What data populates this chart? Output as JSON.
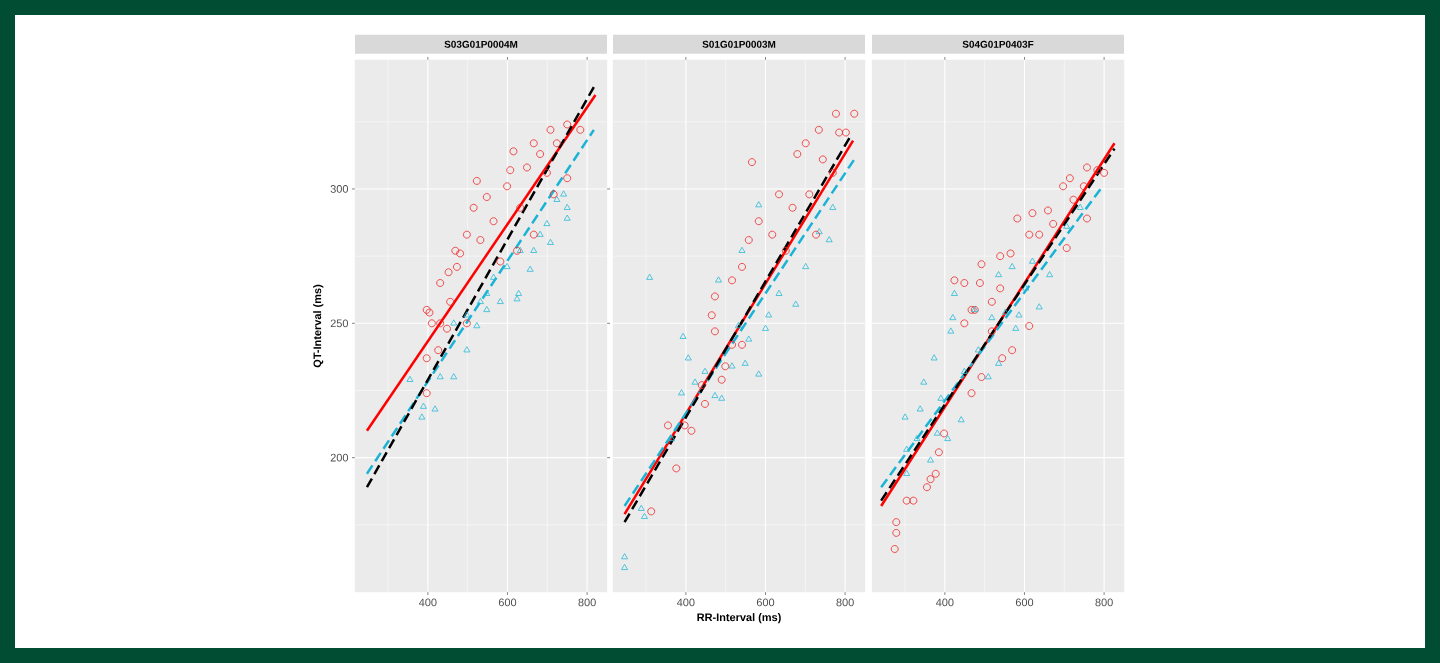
{
  "chart_data": [
    {
      "type": "scatter",
      "title": "S03G01P0004M",
      "ylabel": "QT-Interval (ms)",
      "grid": true,
      "xlim": [
        217,
        850
      ],
      "ylim": [
        150,
        348
      ],
      "xticks": [
        {
          "value": 300,
          "label": null
        },
        400,
        {
          "value": 500,
          "label": null
        },
        600,
        {
          "value": 700,
          "label": null
        },
        800
      ],
      "yticks": [
        {
          "value": 175,
          "label": null
        },
        200,
        {
          "value": 225,
          "label": null
        },
        250,
        {
          "value": 275,
          "label": null
        },
        300,
        {
          "value": 325,
          "label": null
        }
      ],
      "series": [
        {
          "type": "scatter",
          "marker": "triangle",
          "color": "#2bbad8",
          "x": [
            355,
            385,
            418,
            389,
            431,
            465,
            498,
            523,
            548,
            582,
            624,
            628,
            657,
            666,
            708,
            750,
            750,
            724,
            741,
            699,
            682,
            599,
            565,
            532,
            498,
            465,
            548,
            632
          ],
          "values": [
            229,
            215,
            218,
            219,
            230,
            230,
            240,
            249,
            255,
            258,
            259,
            261,
            270,
            277,
            280,
            289,
            293,
            296,
            298,
            287,
            283,
            271,
            267,
            258,
            253,
            250,
            261,
            277
          ]
        },
        {
          "type": "scatter",
          "marker": "circle",
          "color": "#f02424",
          "x": [
            404,
            410,
            397,
            397,
            426,
            431,
            452,
            469,
            498,
            523,
            515,
            548,
            607,
            615,
            666,
            708,
            750,
            783,
            750,
            716,
            666,
            624,
            582,
            397,
            473,
            599,
            649,
            682,
            565,
            532,
            481,
            456,
            431,
            448,
            498,
            632,
            699,
            724
          ],
          "values": [
            254,
            250,
            237,
            224,
            240,
            265,
            269,
            277,
            283,
            303,
            293,
            297,
            307,
            314,
            317,
            322,
            324,
            322,
            304,
            298,
            283,
            277,
            273,
            255,
            271,
            301,
            308,
            313,
            288,
            281,
            276,
            258,
            250,
            248,
            250,
            293,
            306,
            317
          ]
        },
        {
          "type": "line",
          "line_style": "solid",
          "color": "#ff0000",
          "x": [
            247,
            821
          ],
          "values": [
            210,
            335
          ]
        },
        {
          "type": "line",
          "line_style": "dashed",
          "color": "#1ab3d6",
          "x": [
            247,
            817
          ],
          "values": [
            194,
            322
          ]
        },
        {
          "type": "line",
          "line_style": "dashed",
          "color": "#000000",
          "x": [
            247,
            821
          ],
          "values": [
            189,
            339
          ]
        }
      ]
    },
    {
      "type": "scatter",
      "title": "S01G01P0003M",
      "xlabel": "RR-Interval (ms)",
      "grid": true,
      "tick_labels": "x",
      "xlim": [
        217,
        850
      ],
      "ylim": [
        150,
        348
      ],
      "xticks": [
        {
          "value": 300,
          "label": null
        },
        400,
        {
          "value": 500,
          "label": null
        },
        600,
        {
          "value": 700,
          "label": null
        },
        800
      ],
      "yticks": [
        {
          "value": 175,
          "label": null
        },
        200,
        {
          "value": 225,
          "label": null
        },
        250,
        {
          "value": 275,
          "label": null
        },
        300,
        {
          "value": 325,
          "label": null
        }
      ],
      "series": [
        {
          "type": "scatter",
          "marker": "triangle",
          "color": "#2bbad8",
          "x": [
            309,
            583,
            482,
            769,
            760,
            735,
            701,
            676,
            634,
            600,
            541,
            583,
            549,
            393,
            406,
            389,
            423,
            448,
            473,
            516,
            532,
            608,
            364,
            288,
            296,
            246,
            246,
            558,
            490
          ],
          "values": [
            267,
            294,
            266,
            293,
            281,
            284,
            271,
            257,
            261,
            248,
            277,
            231,
            235,
            245,
            237,
            224,
            228,
            232,
            223,
            234,
            249,
            253,
            207,
            181,
            178,
            163,
            159,
            244,
            222
          ]
        },
        {
          "type": "scatter",
          "marker": "circle",
          "color": "#f02424",
          "x": [
            566,
            634,
            701,
            777,
            823,
            734,
            785,
            680,
            558,
            583,
            473,
            516,
            465,
            541,
            802,
            769,
            727,
            651,
            668,
            617,
            744,
            710,
            473,
            440,
            397,
            414,
            355,
            376,
            313,
            448,
            490,
            516,
            541,
            499
          ],
          "values": [
            310,
            298,
            317,
            328,
            328,
            322,
            321,
            313,
            281,
            288,
            260,
            266,
            253,
            271,
            321,
            306,
            283,
            277,
            293,
            283,
            311,
            298,
            247,
            227,
            212,
            210,
            212,
            196,
            180,
            220,
            229,
            242,
            242,
            234
          ]
        },
        {
          "type": "line",
          "line_style": "solid",
          "color": "#ff0000",
          "x": [
            246,
            820
          ],
          "values": [
            179,
            318
          ]
        },
        {
          "type": "line",
          "line_style": "dashed",
          "color": "#1ab3d6",
          "x": [
            246,
            823
          ],
          "values": [
            182,
            311
          ]
        },
        {
          "type": "line",
          "line_style": "dashed",
          "color": "#000000",
          "x": [
            246,
            815
          ],
          "values": [
            176,
            320
          ]
        }
      ]
    },
    {
      "type": "scatter",
      "title": "S04G01P0403F",
      "grid": true,
      "tick_labels": "x",
      "xlim": [
        217,
        850
      ],
      "ylim": [
        150,
        348
      ],
      "xticks": [
        {
          "value": 300,
          "label": null
        },
        400,
        {
          "value": 500,
          "label": null
        },
        600,
        {
          "value": 700,
          "label": null
        },
        800
      ],
      "yticks": [
        {
          "value": 175,
          "label": null
        },
        200,
        {
          "value": 225,
          "label": null
        },
        250,
        {
          "value": 275,
          "label": null
        },
        300,
        {
          "value": 325,
          "label": null
        }
      ],
      "series": [
        {
          "type": "scatter",
          "marker": "circle",
          "color": "#f02424",
          "x": [
            274,
            278,
            278,
            304,
            321,
            355,
            364,
            377,
            385,
            398,
            467,
            492,
            569,
            544,
            467,
            449,
            518,
            612,
            424,
            449,
            488,
            492,
            539,
            565,
            582,
            620,
            659,
            697,
            714,
            749,
            800,
            757,
            706,
            672,
            612,
            539,
            475,
            518,
            757,
            783,
            723,
            637
          ],
          "values": [
            166,
            172,
            176,
            184,
            184,
            189,
            192,
            194,
            202,
            209,
            224,
            230,
            240,
            237,
            255,
            250,
            247,
            249,
            266,
            265,
            265,
            272,
            275,
            276,
            289,
            291,
            292,
            301,
            304,
            301,
            306,
            289,
            278,
            287,
            283,
            263,
            255,
            258,
            308,
            307,
            296,
            283
          ]
        },
        {
          "type": "scatter",
          "marker": "triangle",
          "color": "#2bbad8",
          "x": [
            300,
            304,
            304,
            347,
            373,
            415,
            420,
            338,
            364,
            441,
            407,
            381,
            509,
            535,
            578,
            552,
            449,
            484,
            390,
            330,
            424,
            535,
            569,
            603,
            637,
            663,
            620,
            706,
            740,
            475,
            518,
            586
          ],
          "values": [
            215,
            203,
            194,
            228,
            237,
            247,
            252,
            218,
            199,
            214,
            207,
            209,
            230,
            235,
            248,
            254,
            232,
            240,
            222,
            207,
            261,
            268,
            271,
            263,
            256,
            268,
            273,
            286,
            293,
            255,
            252,
            253
          ]
        },
        {
          "type": "line",
          "line_style": "solid",
          "color": "#ff0000",
          "x": [
            240,
            826
          ],
          "values": [
            182,
            317
          ]
        },
        {
          "type": "line",
          "line_style": "dashed",
          "color": "#1ab3d6",
          "x": [
            240,
            796
          ],
          "values": [
            189,
            301
          ]
        },
        {
          "type": "line",
          "line_style": "dashed",
          "color": "#000000",
          "x": [
            240,
            826
          ],
          "values": [
            184,
            315
          ]
        }
      ]
    }
  ]
}
